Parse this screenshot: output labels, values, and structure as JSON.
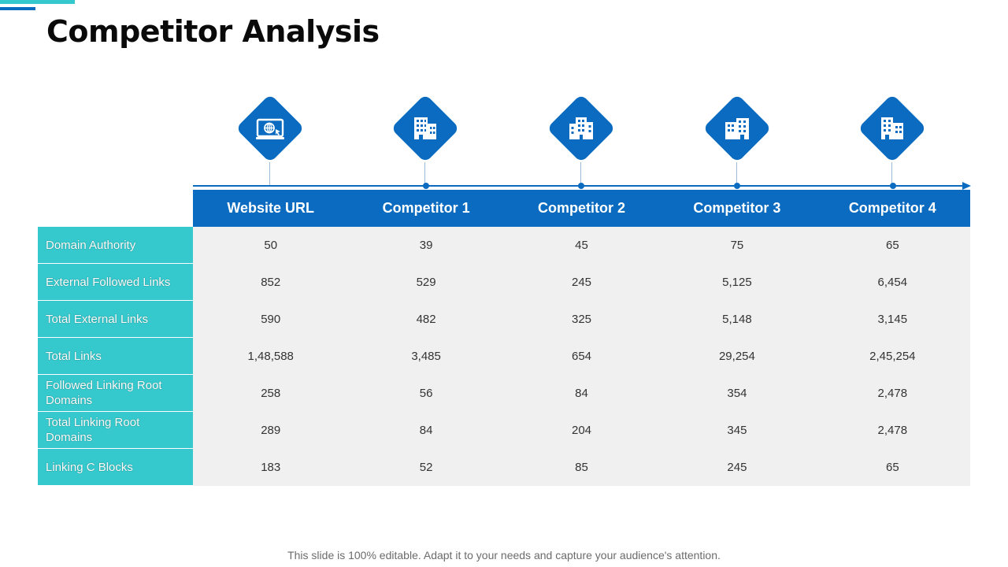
{
  "page": {
    "title": "Competitor Analysis",
    "footer": "This slide is 100% editable. Adapt it to your needs and capture your audience's attention."
  },
  "colors": {
    "header_blue": "#0a6bc0",
    "label_teal": "#35c8cc",
    "cell_gray": "#f0f0f0"
  },
  "columns": [
    {
      "label": "Website URL",
      "icon": "website-globe-icon"
    },
    {
      "label": "Competitor 1",
      "icon": "building-icon"
    },
    {
      "label": "Competitor 2",
      "icon": "building-icon"
    },
    {
      "label": "Competitor 3",
      "icon": "building-icon"
    },
    {
      "label": "Competitor 4",
      "icon": "building-icon"
    }
  ],
  "rows": [
    {
      "label": "Domain Authority",
      "values": [
        "50",
        "39",
        "45",
        "75",
        "65"
      ]
    },
    {
      "label": "External Followed Links",
      "values": [
        "852",
        "529",
        "245",
        "5,125",
        "6,454"
      ]
    },
    {
      "label": "Total External Links",
      "values": [
        "590",
        "482",
        "325",
        "5,148",
        "3,145"
      ]
    },
    {
      "label": "Total Links",
      "values": [
        "1,48,588",
        "3,485",
        "654",
        "29,254",
        "2,45,254"
      ]
    },
    {
      "label": "Followed Linking Root Domains",
      "values": [
        "258",
        "56",
        "84",
        "354",
        "2,478"
      ]
    },
    {
      "label": "Total Linking Root Domains",
      "values": [
        "289",
        "84",
        "204",
        "345",
        "2,478"
      ]
    },
    {
      "label": "Linking C Blocks",
      "values": [
        "183",
        "52",
        "85",
        "245",
        "65"
      ]
    }
  ]
}
